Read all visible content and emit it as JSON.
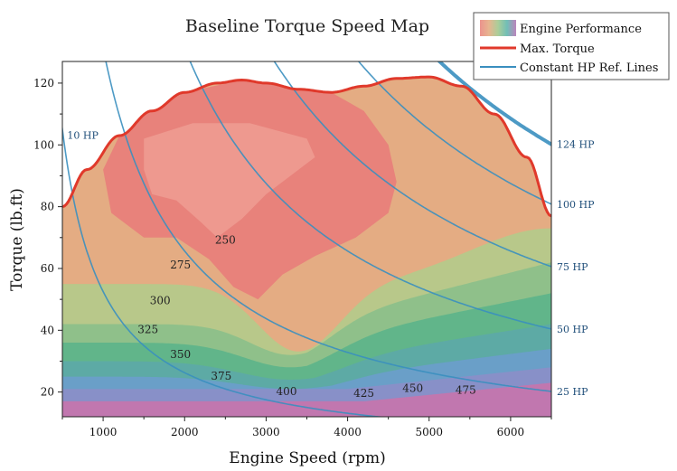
{
  "chart_data": {
    "type": "contour",
    "title": "Baseline Torque Speed Map",
    "xlabel": "Engine Speed (rpm)",
    "ylabel": "Torque (lb.ft)",
    "xlim": [
      500,
      6500
    ],
    "ylim": [
      12,
      127
    ],
    "x_ticks": [
      1000,
      2000,
      3000,
      4000,
      5000,
      6000
    ],
    "y_ticks": [
      20,
      40,
      60,
      80,
      100,
      120
    ],
    "grid": false,
    "legend": {
      "position": "top-right",
      "entries": [
        {
          "label": "Engine Performance",
          "kind": "gradient-patch"
        },
        {
          "label": "Max. Torque",
          "kind": "line",
          "color": "#e0392b"
        },
        {
          "label": "Constant HP Ref. Lines",
          "kind": "line",
          "color": "#3a8fbf"
        }
      ]
    },
    "max_torque": {
      "name": "Max. Torque",
      "color": "#e0392b",
      "x": [
        500,
        800,
        1200,
        1600,
        2000,
        2400,
        2700,
        3000,
        3400,
        3800,
        4200,
        4600,
        5000,
        5400,
        5800,
        6200,
        6500
      ],
      "y": [
        80,
        92,
        103,
        111,
        117,
        120,
        121,
        120,
        118,
        117,
        119,
        121.5,
        122,
        119,
        110,
        96,
        77
      ]
    },
    "constant_hp_lines": [
      {
        "hp": 10,
        "label": "10 HP"
      },
      {
        "hp": 25,
        "label": "25 HP"
      },
      {
        "hp": 50,
        "label": "50 HP"
      },
      {
        "hp": 75,
        "label": "75 HP"
      },
      {
        "hp": 100,
        "label": "100 HP"
      },
      {
        "hp": 124,
        "label": "124 HP"
      }
    ],
    "efficiency_contours": [
      {
        "level": 250,
        "label": "250",
        "label_at": [
          2500,
          68
        ]
      },
      {
        "level": 275,
        "label": "275",
        "label_at": [
          1950,
          60
        ]
      },
      {
        "level": 300,
        "label": "300",
        "label_at": [
          1700,
          48.5
        ]
      },
      {
        "level": 325,
        "label": "325",
        "label_at": [
          1550,
          39
        ]
      },
      {
        "level": 350,
        "label": "350",
        "label_at": [
          1950,
          31
        ]
      },
      {
        "level": 375,
        "label": "375",
        "label_at": [
          2450,
          24
        ]
      },
      {
        "level": 400,
        "label": "400",
        "label_at": [
          3250,
          19
        ]
      },
      {
        "level": 425,
        "label": "425",
        "label_at": [
          4200,
          18.5
        ]
      },
      {
        "level": 450,
        "label": "450",
        "label_at": [
          4800,
          20
        ]
      },
      {
        "level": 475,
        "label": "475",
        "label_at": [
          5450,
          19.5
        ]
      }
    ],
    "colors": {
      "axis": "#222222",
      "hp_line": "#3a8fbf",
      "hp_label": "#1f4e79"
    }
  }
}
